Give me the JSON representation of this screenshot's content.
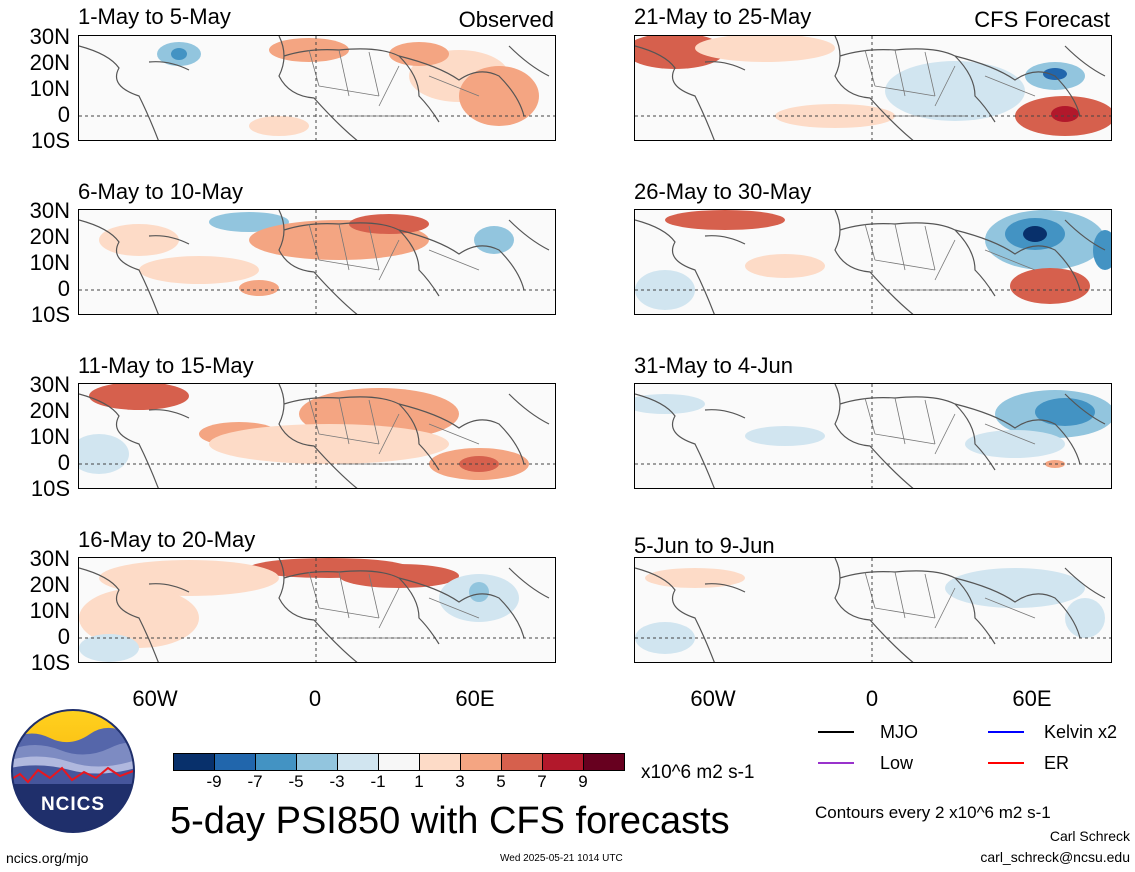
{
  "panels": [
    {
      "title": "1-May to 5-May",
      "tag": "Observed"
    },
    {
      "title": "21-May to 25-May",
      "tag": "CFS Forecast"
    },
    {
      "title": "6-May to 10-May",
      "tag": ""
    },
    {
      "title": "26-May to 30-May",
      "tag": ""
    },
    {
      "title": "11-May to 15-May",
      "tag": ""
    },
    {
      "title": "31-May to 4-Jun",
      "tag": ""
    },
    {
      "title": "16-May to 20-May",
      "tag": ""
    },
    {
      "title": "5-Jun to 9-Jun",
      "tag": ""
    }
  ],
  "lat_labels": [
    "30N",
    "20N",
    "10N",
    "0",
    "10S"
  ],
  "lon_labels": [
    "60W",
    "0",
    "60E"
  ],
  "colorbar": {
    "colors": [
      "#08306b",
      "#2166ac",
      "#4393c3",
      "#92c5de",
      "#d1e5f0",
      "#f7f7f7",
      "#fddbc7",
      "#f4a582",
      "#d6604d",
      "#b2182b",
      "#67001f"
    ],
    "labels": [
      "-9",
      "-7",
      "-5",
      "-3",
      "-1",
      "1",
      "3",
      "5",
      "7",
      "9"
    ],
    "units": "x10^6 m2 s-1"
  },
  "legend": [
    {
      "label": "MJO",
      "color": "#000000"
    },
    {
      "label": "Kelvin x2",
      "color": "#0000ff"
    },
    {
      "label": "Low",
      "color": "#9932cc"
    },
    {
      "label": "ER",
      "color": "#ff0000"
    }
  ],
  "logo_text": "NCICS",
  "main_title": "5-day PSI850 with CFS forecasts",
  "contour_note": "Contours every 2 x10^6 m2 s-1",
  "author": "Carl Schreck",
  "email": "carl_schreck@ncsu.edu",
  "url": "ncics.org/mjo",
  "timestamp": "Wed 2025-05-21 1014 UTC"
}
